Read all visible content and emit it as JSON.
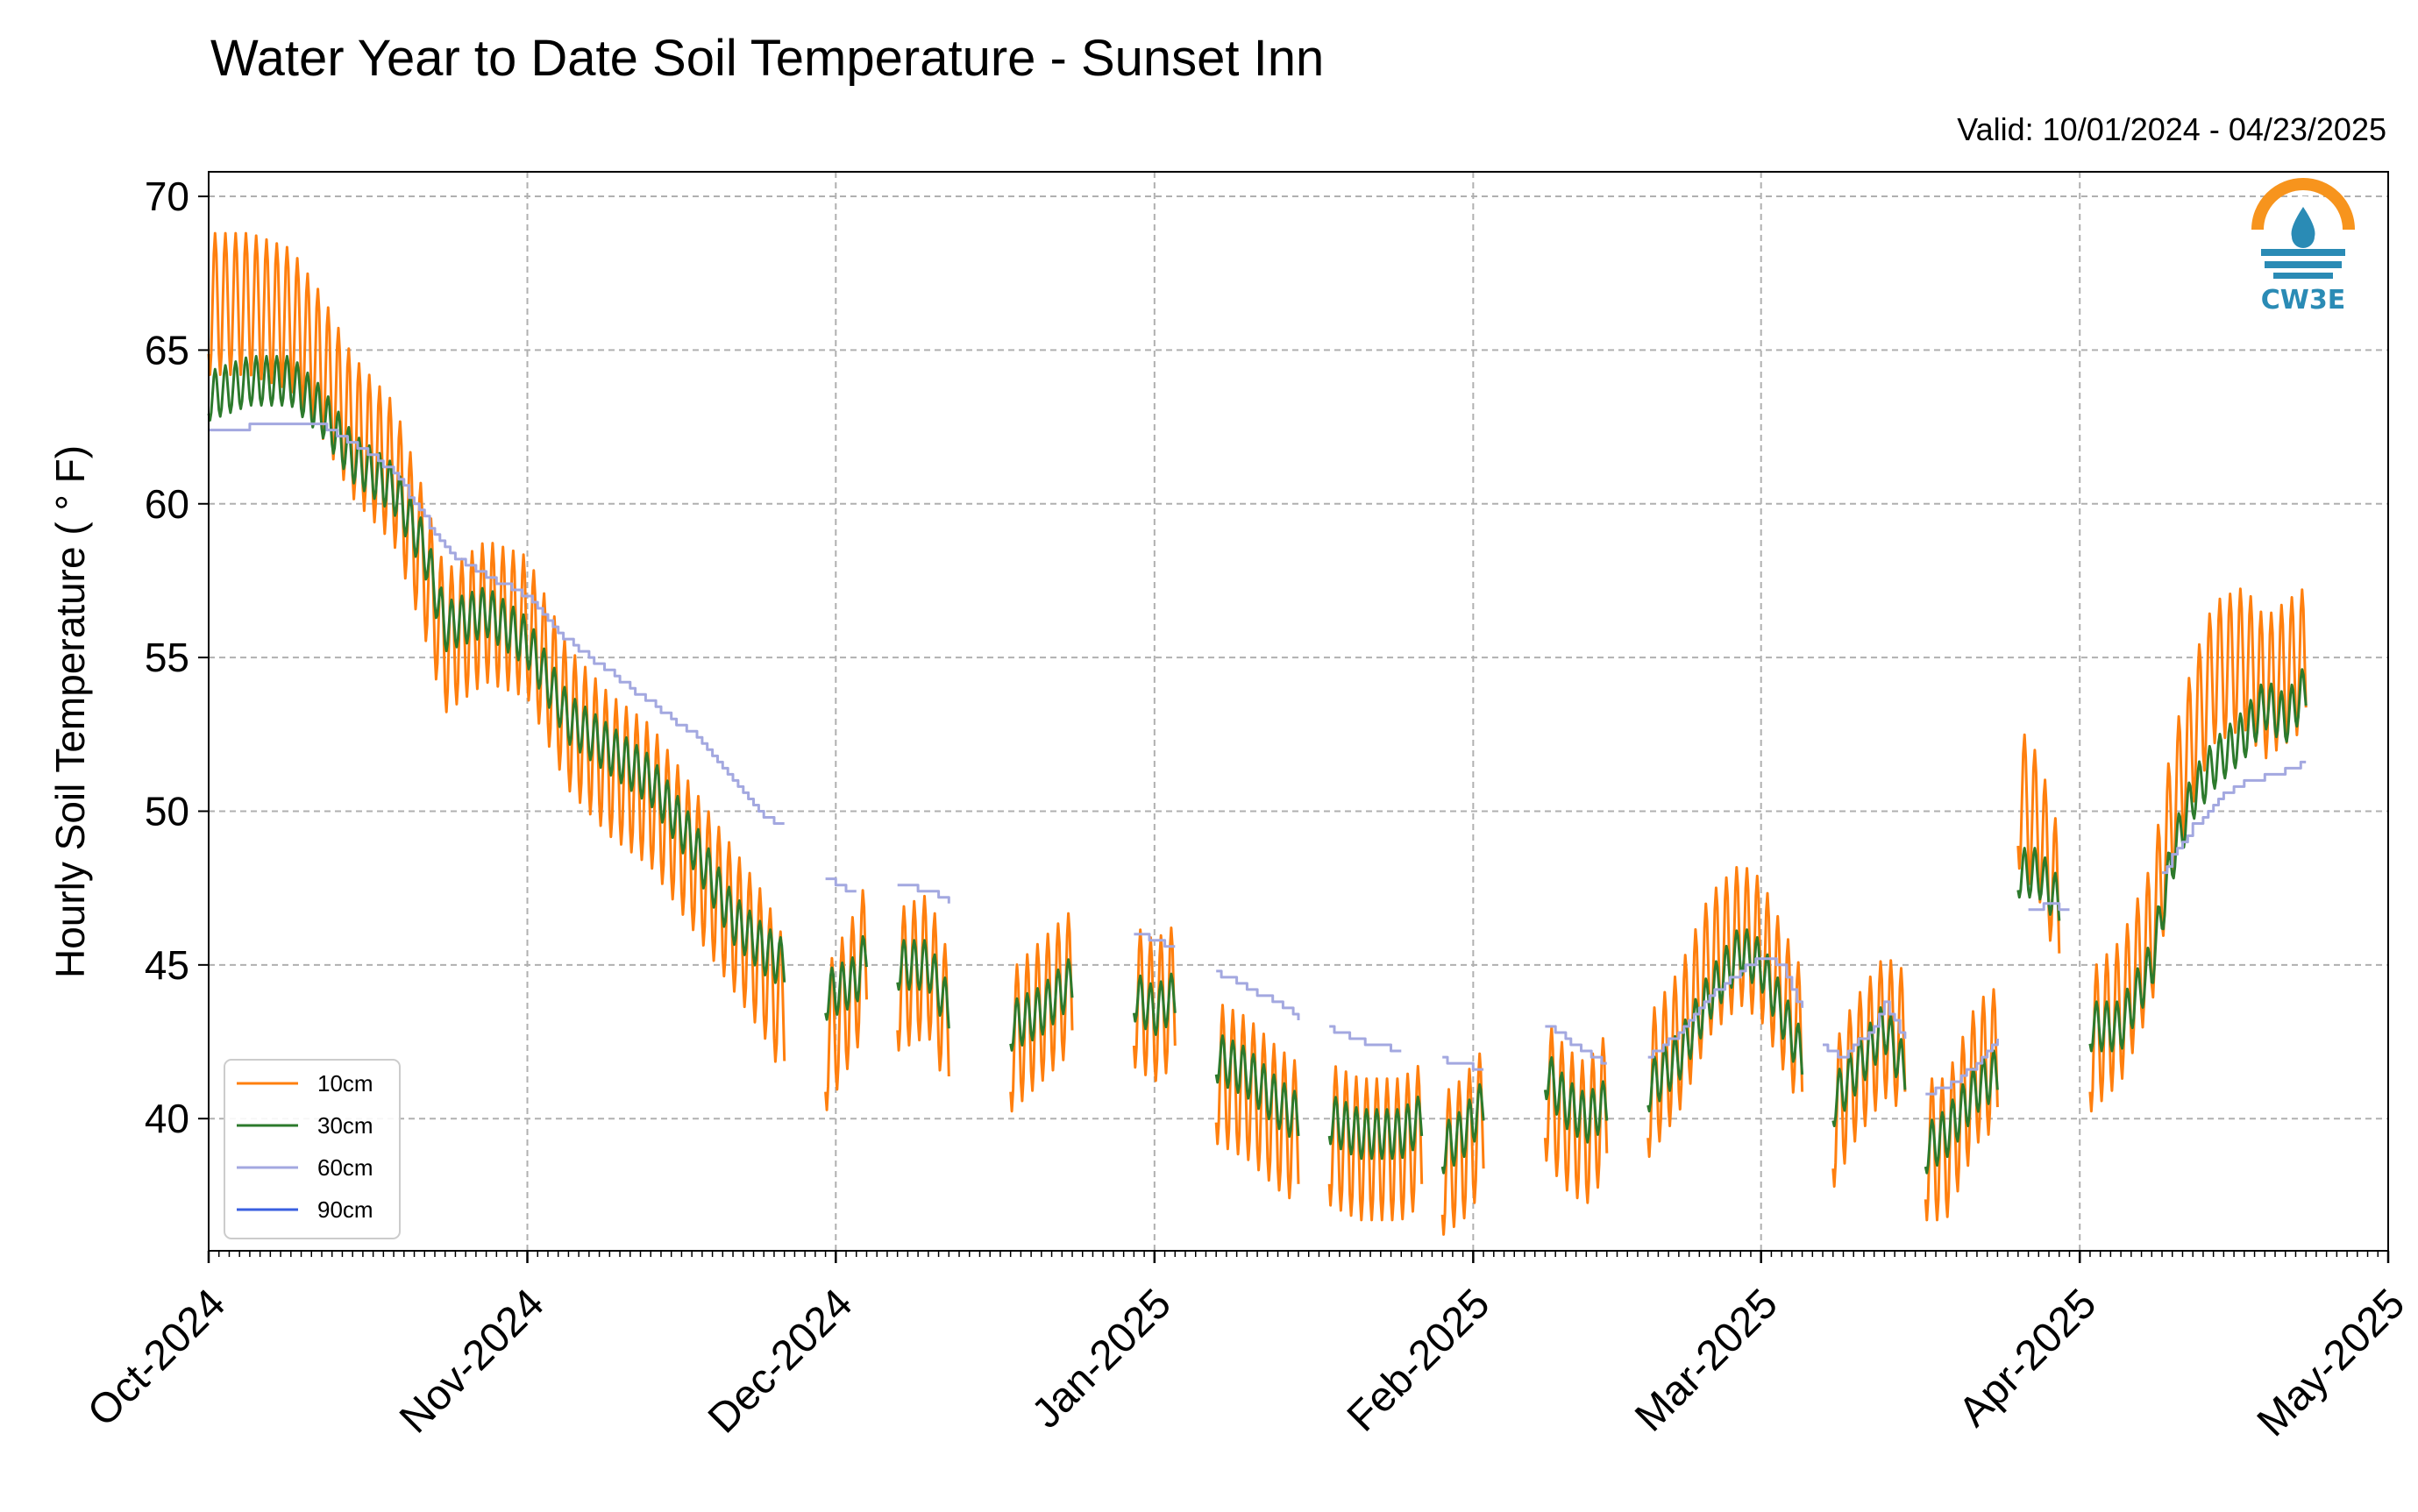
{
  "title": "Water Year to Date Soil Temperature - Sunset Inn",
  "valid_text": "Valid: 10/01/2024 - 04/23/2025",
  "logo": {
    "text": "CW3E",
    "icon": "water-drop-icon",
    "color": "#f7941d",
    "accent": "#2a8bb5"
  },
  "colors": {
    "10cm": "#ff7f0e",
    "30cm": "#2c7a2c",
    "60cm": "#a3a8e0",
    "90cm": "#3a5fe0",
    "grid": "#b0b0b0"
  },
  "chart_data": {
    "type": "line",
    "title": "Water Year to Date Soil Temperature - Sunset Inn",
    "xlabel": "",
    "ylabel": "Hourly Soil Temperature ( ° F)",
    "xlim": [
      "2024-10-01",
      "2025-05-01"
    ],
    "ylim": [
      35.7,
      70.8
    ],
    "x_ticks": [
      "2024-10-01",
      "2024-11-01",
      "2024-12-01",
      "2025-01-01",
      "2025-02-01",
      "2025-03-01",
      "2025-04-01",
      "2025-05-01"
    ],
    "x_tick_labels": [
      "Oct-2024",
      "Nov-2024",
      "Dec-2024",
      "Jan-2025",
      "Feb-2025",
      "Mar-2025",
      "Apr-2025",
      "May-2025"
    ],
    "y_ticks": [
      40,
      45,
      50,
      55,
      60,
      65,
      70
    ],
    "y_tick_labels": [
      "40",
      "45",
      "50",
      "55",
      "60",
      "65",
      "70"
    ],
    "grid": true,
    "legend_position": "bottom-left",
    "series": [
      {
        "name": "10cm",
        "color": "#ff7f0e",
        "amplitude": 2.3,
        "segments": [
          [
            [
              "2024-10-01",
              66.5
            ],
            [
              "2024-10-05",
              66.5
            ],
            [
              "2024-10-09",
              66.0
            ],
            [
              "2024-10-12",
              64.5
            ],
            [
              "2024-10-15",
              62.5
            ],
            [
              "2024-10-19",
              61.0
            ],
            [
              "2024-10-22",
              58.0
            ],
            [
              "2024-10-24",
              55.5
            ],
            [
              "2024-10-28",
              56.5
            ],
            [
              "2024-11-01",
              56.0
            ],
            [
              "2024-11-05",
              53.0
            ],
            [
              "2024-11-09",
              51.5
            ],
            [
              "2024-11-13",
              50.5
            ],
            [
              "2024-11-17",
              48.5
            ],
            [
              "2024-11-21",
              46.5
            ],
            [
              "2024-11-24",
              45.0
            ],
            [
              "2024-11-26",
              43.5
            ]
          ],
          [
            [
              "2024-11-30",
              42.5
            ],
            [
              "2024-12-03",
              44.5
            ],
            [
              "2024-12-04",
              45.5
            ]
          ],
          [
            [
              "2024-12-07",
              44.5
            ],
            [
              "2024-12-10",
              45.0
            ],
            [
              "2024-12-12",
              43.0
            ]
          ],
          [
            [
              "2024-12-18",
              42.5
            ],
            [
              "2024-12-21",
              43.5
            ],
            [
              "2024-12-24",
              44.5
            ]
          ],
          [
            [
              "2024-12-30",
              44.0
            ],
            [
              "2025-01-01",
              43.5
            ],
            [
              "2025-01-03",
              44.0
            ]
          ],
          [
            [
              "2025-01-07",
              41.5
            ],
            [
              "2025-01-10",
              41.0
            ],
            [
              "2025-01-13",
              40.0
            ],
            [
              "2025-01-15",
              39.5
            ]
          ],
          [
            [
              "2025-01-18",
              39.5
            ],
            [
              "2025-01-21",
              39.0
            ],
            [
              "2025-01-25",
              39.0
            ],
            [
              "2025-01-27",
              39.5
            ]
          ],
          [
            [
              "2025-01-29",
              38.5
            ],
            [
              "2025-01-31",
              39.0
            ],
            [
              "2025-02-02",
              40.0
            ]
          ],
          [
            [
              "2025-02-08",
              41.0
            ],
            [
              "2025-02-10",
              40.0
            ],
            [
              "2025-02-12",
              39.5
            ],
            [
              "2025-02-14",
              40.5
            ]
          ],
          [
            [
              "2025-02-18",
              41.0
            ],
            [
              "2025-02-21",
              42.5
            ],
            [
              "2025-02-24",
              45.0
            ],
            [
              "2025-02-27",
              46.0
            ],
            [
              "2025-03-01",
              45.5
            ],
            [
              "2025-03-03",
              44.0
            ],
            [
              "2025-03-05",
              42.5
            ]
          ],
          [
            [
              "2025-03-08",
              40.0
            ],
            [
              "2025-03-10",
              41.5
            ],
            [
              "2025-03-13",
              43.0
            ],
            [
              "2025-03-15",
              42.5
            ]
          ],
          [
            [
              "2025-03-17",
              39.0
            ],
            [
              "2025-03-19",
              39.0
            ],
            [
              "2025-03-22",
              41.5
            ],
            [
              "2025-03-24",
              42.0
            ]
          ],
          [
            [
              "2025-03-26",
              50.5
            ],
            [
              "2025-03-28",
              49.5
            ],
            [
              "2025-03-30",
              47.0
            ]
          ],
          [
            [
              "2025-04-02",
              42.5
            ],
            [
              "2025-04-05",
              43.5
            ],
            [
              "2025-04-08",
              46.0
            ],
            [
              "2025-04-10",
              50.0
            ],
            [
              "2025-04-12",
              52.5
            ],
            [
              "2025-04-14",
              54.5
            ],
            [
              "2025-04-17",
              55.0
            ],
            [
              "2025-04-19",
              54.0
            ],
            [
              "2025-04-21",
              54.5
            ],
            [
              "2025-04-23",
              55.0
            ]
          ]
        ]
      },
      {
        "name": "30cm",
        "color": "#2c7a2c",
        "amplitude": 0.8,
        "segments": [
          [
            [
              "2024-10-01",
              63.5
            ],
            [
              "2024-10-05",
              64.0
            ],
            [
              "2024-10-09",
              64.0
            ],
            [
              "2024-10-12",
              63.0
            ],
            [
              "2024-10-15",
              61.5
            ],
            [
              "2024-10-19",
              60.5
            ],
            [
              "2024-10-22",
              58.5
            ],
            [
              "2024-10-24",
              56.0
            ],
            [
              "2024-10-28",
              56.5
            ],
            [
              "2024-11-01",
              55.5
            ],
            [
              "2024-11-05",
              53.0
            ],
            [
              "2024-11-09",
              52.0
            ],
            [
              "2024-11-13",
              51.0
            ],
            [
              "2024-11-17",
              49.0
            ],
            [
              "2024-11-21",
              46.5
            ],
            [
              "2024-11-24",
              45.5
            ],
            [
              "2024-11-26",
              45.0
            ]
          ],
          [
            [
              "2024-11-30",
              44.0
            ],
            [
              "2024-12-03",
              44.5
            ],
            [
              "2024-12-04",
              45.5
            ]
          ],
          [
            [
              "2024-12-07",
              45.0
            ],
            [
              "2024-12-10",
              45.0
            ],
            [
              "2024-12-12",
              43.5
            ]
          ],
          [
            [
              "2024-12-18",
              43.0
            ],
            [
              "2024-12-21",
              43.5
            ],
            [
              "2024-12-24",
              44.5
            ]
          ],
          [
            [
              "2024-12-30",
              44.0
            ],
            [
              "2025-01-01",
              43.5
            ],
            [
              "2025-01-03",
              44.0
            ]
          ],
          [
            [
              "2025-01-07",
              42.0
            ],
            [
              "2025-01-10",
              41.5
            ],
            [
              "2025-01-13",
              40.5
            ],
            [
              "2025-01-15",
              40.0
            ]
          ],
          [
            [
              "2025-01-18",
              40.0
            ],
            [
              "2025-01-21",
              39.5
            ],
            [
              "2025-01-25",
              39.5
            ],
            [
              "2025-01-27",
              40.0
            ]
          ],
          [
            [
              "2025-01-29",
              39.0
            ],
            [
              "2025-01-31",
              39.5
            ],
            [
              "2025-02-02",
              40.5
            ]
          ],
          [
            [
              "2025-02-08",
              41.5
            ],
            [
              "2025-02-10",
              40.5
            ],
            [
              "2025-02-12",
              40.0
            ],
            [
              "2025-02-14",
              40.5
            ]
          ],
          [
            [
              "2025-02-18",
              41.0
            ],
            [
              "2025-02-21",
              42.0
            ],
            [
              "2025-02-24",
              44.0
            ],
            [
              "2025-02-27",
              45.5
            ],
            [
              "2025-03-01",
              45.0
            ],
            [
              "2025-03-03",
              43.5
            ],
            [
              "2025-03-05",
              42.0
            ]
          ],
          [
            [
              "2025-03-08",
              40.5
            ],
            [
              "2025-03-10",
              41.5
            ],
            [
              "2025-03-13",
              43.0
            ],
            [
              "2025-03-15",
              41.5
            ]
          ],
          [
            [
              "2025-03-17",
              39.0
            ],
            [
              "2025-03-19",
              39.5
            ],
            [
              "2025-03-22",
              41.0
            ],
            [
              "2025-03-24",
              41.5
            ]
          ],
          [
            [
              "2025-03-26",
              48.0
            ],
            [
              "2025-03-28",
              48.0
            ],
            [
              "2025-03-30",
              47.0
            ]
          ],
          [
            [
              "2025-04-02",
              43.0
            ],
            [
              "2025-04-05",
              43.0
            ],
            [
              "2025-04-08",
              45.0
            ],
            [
              "2025-04-10",
              48.5
            ],
            [
              "2025-04-12",
              50.5
            ],
            [
              "2025-04-14",
              51.5
            ],
            [
              "2025-04-17",
              52.5
            ],
            [
              "2025-04-19",
              53.5
            ],
            [
              "2025-04-21",
              53.0
            ],
            [
              "2025-04-23",
              54.0
            ]
          ]
        ]
      },
      {
        "name": "60cm",
        "color": "#a3a8e0",
        "amplitude": 0,
        "segments": [
          [
            [
              "2024-10-01",
              62.3
            ],
            [
              "2024-10-05",
              62.5
            ],
            [
              "2024-10-09",
              62.6
            ],
            [
              "2024-10-12",
              62.5
            ],
            [
              "2024-10-15",
              62.0
            ],
            [
              "2024-10-19",
              61.0
            ],
            [
              "2024-10-22",
              59.5
            ],
            [
              "2024-10-24",
              58.5
            ],
            [
              "2024-10-28",
              57.6
            ],
            [
              "2024-11-01",
              57.0
            ],
            [
              "2024-11-05",
              55.5
            ],
            [
              "2024-11-09",
              54.5
            ],
            [
              "2024-11-13",
              53.5
            ],
            [
              "2024-11-17",
              52.5
            ],
            [
              "2024-11-21",
              51.0
            ],
            [
              "2024-11-24",
              49.8
            ],
            [
              "2024-11-26",
              49.5
            ]
          ],
          [
            [
              "2024-11-30",
              47.8
            ],
            [
              "2024-12-03",
              47.3
            ]
          ],
          [
            [
              "2024-12-07",
              47.6
            ],
            [
              "2024-12-10",
              47.4
            ],
            [
              "2024-12-12",
              47.0
            ]
          ],
          [
            [
              "2024-12-30",
              46.0
            ],
            [
              "2025-01-01",
              45.8
            ],
            [
              "2025-01-03",
              45.5
            ]
          ],
          [
            [
              "2025-01-07",
              44.8
            ],
            [
              "2025-01-10",
              44.2
            ],
            [
              "2025-01-13",
              43.8
            ],
            [
              "2025-01-15",
              43.2
            ]
          ],
          [
            [
              "2025-01-18",
              42.9
            ],
            [
              "2025-01-21",
              42.5
            ],
            [
              "2025-01-25",
              42.2
            ]
          ],
          [
            [
              "2025-01-29",
              41.9
            ],
            [
              "2025-02-02",
              41.6
            ]
          ],
          [
            [
              "2025-02-08",
              43.0
            ],
            [
              "2025-02-10",
              42.6
            ],
            [
              "2025-02-12",
              42.1
            ],
            [
              "2025-02-14",
              41.8
            ]
          ],
          [
            [
              "2025-02-18",
              42.0
            ],
            [
              "2025-02-21",
              42.8
            ],
            [
              "2025-02-24",
              44.0
            ],
            [
              "2025-02-27",
              44.8
            ],
            [
              "2025-03-01",
              45.2
            ],
            [
              "2025-03-03",
              45.0
            ],
            [
              "2025-03-05",
              43.5
            ]
          ],
          [
            [
              "2025-03-07",
              42.3
            ],
            [
              "2025-03-09",
              42.0
            ],
            [
              "2025-03-12",
              43.0
            ],
            [
              "2025-03-13",
              43.8
            ],
            [
              "2025-03-15",
              42.5
            ]
          ],
          [
            [
              "2025-03-17",
              40.8
            ],
            [
              "2025-03-19",
              41.0
            ],
            [
              "2025-03-22",
              41.8
            ],
            [
              "2025-03-24",
              42.5
            ]
          ],
          [
            [
              "2025-03-27",
              46.7
            ],
            [
              "2025-03-29",
              47.0
            ],
            [
              "2025-03-31",
              46.7
            ]
          ],
          [
            [
              "2025-04-09",
              48.0
            ],
            [
              "2025-04-12",
              49.5
            ],
            [
              "2025-04-15",
              50.5
            ],
            [
              "2025-04-17",
              51.0
            ],
            [
              "2025-04-19",
              51.1
            ],
            [
              "2025-04-21",
              51.3
            ],
            [
              "2025-04-23",
              51.6
            ]
          ]
        ]
      },
      {
        "name": "90cm",
        "color": "#3a5fe0",
        "amplitude": 0,
        "segments": []
      }
    ]
  }
}
